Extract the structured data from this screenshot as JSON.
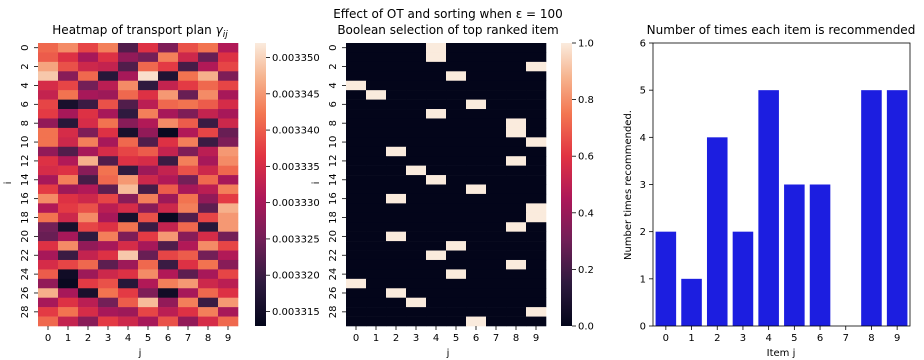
{
  "suptitle": "Effect of OT and sorting when ε = 100",
  "chart_data": [
    {
      "type": "heatmap",
      "title": "Heatmap of transport plan γij",
      "title_main": "Heatmap of transport plan ",
      "title_symbol": "γ",
      "title_subscript": "ij",
      "xlabel": "j",
      "ylabel": "i",
      "x_ticks": [
        "0",
        "1",
        "2",
        "3",
        "4",
        "5",
        "6",
        "7",
        "8",
        "9"
      ],
      "y_ticks": [
        "0",
        "2",
        "4",
        "6",
        "8",
        "10",
        "12",
        "14",
        "16",
        "18",
        "20",
        "22",
        "24",
        "26",
        "28"
      ],
      "rows": 30,
      "cols": 10,
      "colorbar": {
        "min": 0.003313,
        "max": 0.003352,
        "ticks": [
          "0.003315",
          "0.003320",
          "0.003325",
          "0.003330",
          "0.003335",
          "0.003340",
          "0.003345",
          "0.003350"
        ],
        "tick_values": [
          0.003315,
          0.00332,
          0.003325,
          0.00333,
          0.003335,
          0.00334,
          0.003345,
          0.00335
        ]
      },
      "values": [
        [
          0.003341,
          0.003344,
          0.003338,
          0.003343,
          0.003322,
          0.003336,
          0.003326,
          0.003339,
          0.003342,
          0.003331
        ],
        [
          0.00334,
          0.003336,
          0.00333,
          0.003336,
          0.003328,
          0.003325,
          0.003343,
          0.003334,
          0.003324,
          0.003336
        ],
        [
          0.003346,
          0.003339,
          0.003334,
          0.003333,
          0.003322,
          0.003341,
          0.003337,
          0.003321,
          0.003331,
          0.003338
        ],
        [
          0.003349,
          0.003327,
          0.003341,
          0.003318,
          0.00333,
          0.003351,
          0.003317,
          0.003342,
          0.003347,
          0.003326
        ],
        [
          0.003335,
          0.003338,
          0.003325,
          0.003332,
          0.003344,
          0.003319,
          0.003333,
          0.003337,
          0.003341,
          0.003338
        ],
        [
          0.003333,
          0.003342,
          0.00333,
          0.003329,
          0.003341,
          0.003336,
          0.003345,
          0.003324,
          0.003344,
          0.00333
        ],
        [
          0.003338,
          0.003316,
          0.00332,
          0.003339,
          0.003322,
          0.003332,
          0.003341,
          0.003342,
          0.00334,
          0.003335
        ],
        [
          0.003337,
          0.00333,
          0.003336,
          0.00333,
          0.003319,
          0.003343,
          0.00333,
          0.003326,
          0.003333,
          0.00333
        ],
        [
          0.003328,
          0.003318,
          0.003335,
          0.003342,
          0.003327,
          0.003331,
          0.003344,
          0.00334,
          0.00332,
          0.003334
        ],
        [
          0.003342,
          0.003335,
          0.003326,
          0.003336,
          0.003316,
          0.003328,
          0.003314,
          0.003331,
          0.003338,
          0.003324
        ],
        [
          0.003342,
          0.003334,
          0.003343,
          0.00333,
          0.003341,
          0.003322,
          0.003336,
          0.003343,
          0.00332,
          0.003326
        ],
        [
          0.003328,
          0.003322,
          0.00333,
          0.003335,
          0.003338,
          0.00334,
          0.003333,
          0.003326,
          0.003332,
          0.003345
        ],
        [
          0.003336,
          0.003331,
          0.003347,
          0.003322,
          0.003336,
          0.003335,
          0.00332,
          0.003343,
          0.00333,
          0.003344
        ],
        [
          0.003335,
          0.003336,
          0.003327,
          0.003342,
          0.003319,
          0.003329,
          0.003333,
          0.003339,
          0.003334,
          0.003341
        ],
        [
          0.00333,
          0.003343,
          0.003321,
          0.003341,
          0.003345,
          0.003334,
          0.003331,
          0.003325,
          0.003341,
          0.00333
        ],
        [
          0.003337,
          0.003329,
          0.003331,
          0.003323,
          0.003348,
          0.003321,
          0.00334,
          0.00333,
          0.003332,
          0.003343
        ],
        [
          0.003344,
          0.003336,
          0.003334,
          0.003338,
          0.003327,
          0.003343,
          0.003329,
          0.003342,
          0.003328,
          0.003337
        ],
        [
          0.003331,
          0.003337,
          0.003339,
          0.003332,
          0.003335,
          0.003327,
          0.003334,
          0.003343,
          0.003323,
          0.003347
        ],
        [
          0.003342,
          0.003334,
          0.003344,
          0.00333,
          0.003316,
          0.003339,
          0.003314,
          0.003322,
          0.003338,
          0.003345
        ],
        [
          0.003325,
          0.003316,
          0.003338,
          0.003336,
          0.003342,
          0.00332,
          0.003333,
          0.003341,
          0.003318,
          0.003345
        ],
        [
          0.003324,
          0.00333,
          0.003319,
          0.003343,
          0.003326,
          0.003337,
          0.003345,
          0.003327,
          0.003335,
          0.003325
        ],
        [
          0.003336,
          0.003344,
          0.003328,
          0.00333,
          0.003335,
          0.00333,
          0.003322,
          0.003331,
          0.003344,
          0.003338
        ],
        [
          0.00333,
          0.00332,
          0.003333,
          0.003336,
          0.003349,
          0.003324,
          0.003338,
          0.00334,
          0.003325,
          0.003331
        ],
        [
          0.003335,
          0.003338,
          0.003341,
          0.003323,
          0.003329,
          0.003341,
          0.00332,
          0.003336,
          0.003342,
          0.003327
        ],
        [
          0.00334,
          0.003315,
          0.003329,
          0.003334,
          0.003336,
          0.003344,
          0.003331,
          0.003323,
          0.00333,
          0.003338
        ],
        [
          0.003328,
          0.003314,
          0.003337,
          0.003339,
          0.003318,
          0.003331,
          0.003343,
          0.003345,
          0.003334,
          0.003332
        ],
        [
          0.003347,
          0.00333,
          0.003316,
          0.003342,
          0.003337,
          0.003326,
          0.003315,
          0.00333,
          0.003341,
          0.003336
        ],
        [
          0.00333,
          0.003336,
          0.003332,
          0.003325,
          0.00334,
          0.003348,
          0.003328,
          0.003343,
          0.00332,
          0.003345
        ],
        [
          0.003337,
          0.003342,
          0.003335,
          0.00333,
          0.003329,
          0.003338,
          0.003332,
          0.003336,
          0.003343,
          0.00333
        ],
        [
          0.003341,
          0.003333,
          0.003327,
          0.003337,
          0.003334,
          0.00333,
          0.003339,
          0.003328,
          0.003335,
          0.003341
        ]
      ]
    },
    {
      "type": "heatmap",
      "title": "Boolean selection of top ranked item",
      "xlabel": "j",
      "ylabel": "i",
      "x_ticks": [
        "0",
        "1",
        "2",
        "3",
        "4",
        "5",
        "6",
        "7",
        "8",
        "9"
      ],
      "y_ticks": [
        "0",
        "2",
        "4",
        "6",
        "8",
        "10",
        "12",
        "14",
        "16",
        "18",
        "20",
        "22",
        "24",
        "26",
        "28"
      ],
      "rows": 30,
      "cols": 10,
      "colorbar": {
        "min": 0.0,
        "max": 1.0,
        "ticks": [
          "0.0",
          "0.2",
          "0.4",
          "0.6",
          "0.8",
          "1.0"
        ],
        "tick_values": [
          0.0,
          0.2,
          0.4,
          0.6,
          0.8,
          1.0
        ]
      },
      "selected_column_per_row": [
        4,
        4,
        9,
        5,
        0,
        1,
        6,
        4,
        8,
        8,
        9,
        2,
        8,
        3,
        4,
        6,
        2,
        9,
        9,
        8,
        2,
        5,
        4,
        8,
        5,
        0,
        2,
        3,
        9,
        6
      ]
    },
    {
      "type": "bar",
      "title": "Number of times each item is recommended",
      "xlabel": "Item j",
      "ylabel": "Number times recommended.",
      "categories": [
        "0",
        "1",
        "2",
        "3",
        "4",
        "5",
        "6",
        "7",
        "8",
        "9"
      ],
      "values": [
        2,
        1,
        4,
        2,
        5,
        3,
        3,
        0,
        5,
        5
      ],
      "ylim": [
        0,
        6
      ],
      "y_ticks": [
        "0",
        "1",
        "2",
        "3",
        "4",
        "5",
        "6"
      ],
      "bar_color": "#1c1ee0"
    }
  ]
}
